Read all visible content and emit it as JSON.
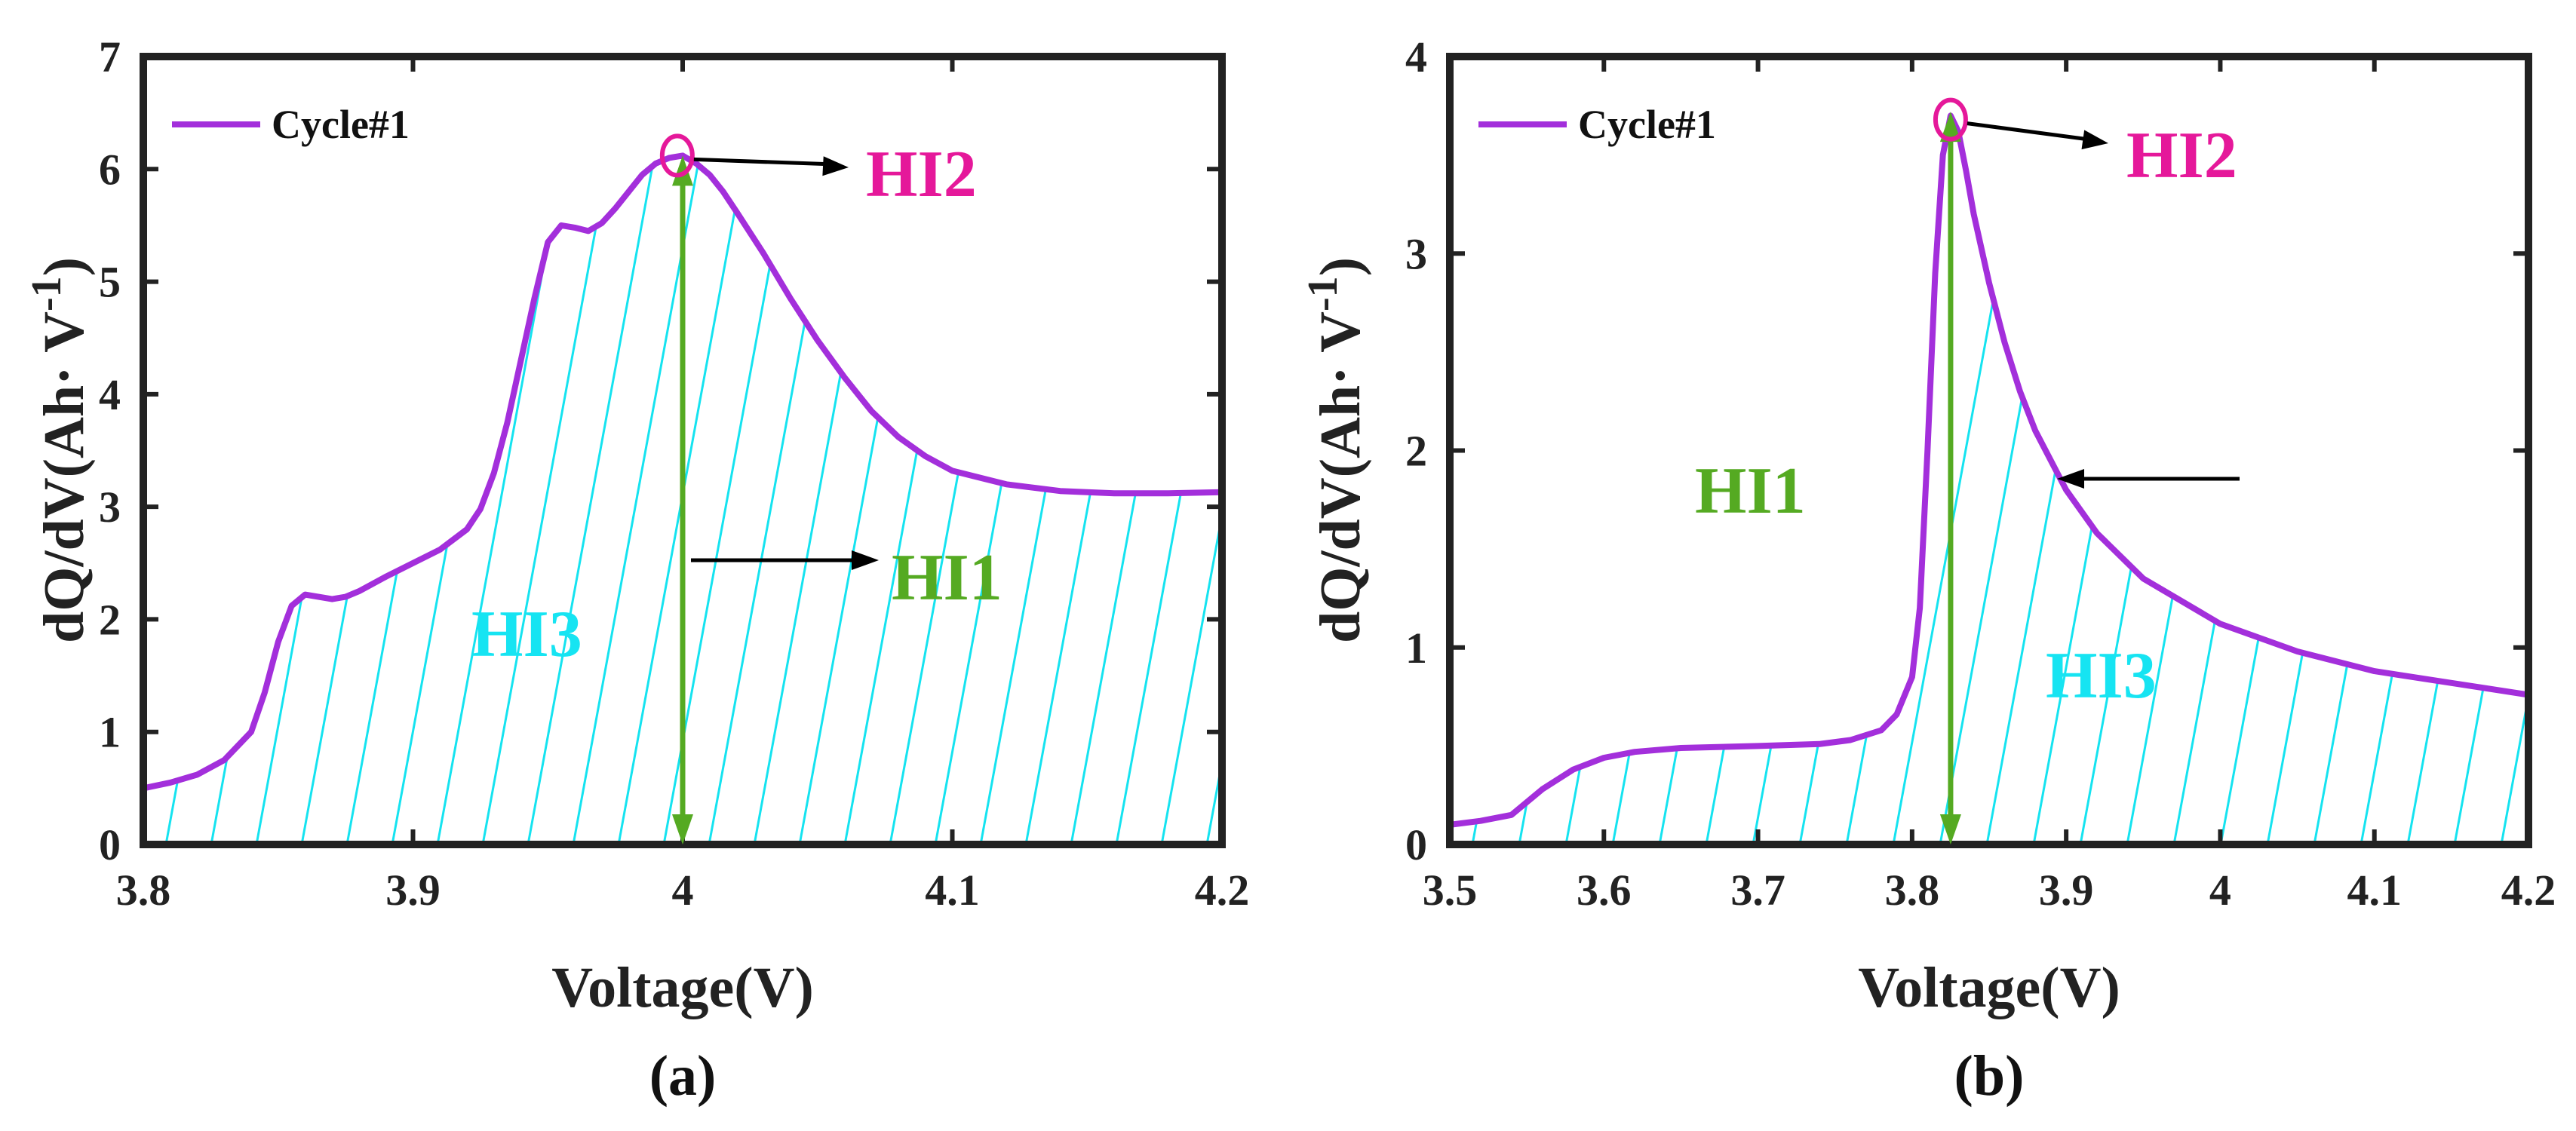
{
  "colors": {
    "curve": "#A32FDB",
    "hatch": "#15E3F0",
    "hi1": "#55AA22",
    "hi2": "#E5189A",
    "hi3": "#16E4F2",
    "axis": "#222222",
    "arrow": "#000000"
  },
  "chart_data": [
    {
      "type": "line",
      "caption": "(a)",
      "xlabel": "Voltage(V)",
      "ylabel": "dQ/dV(Ah· V",
      "ylabel_sup": "-1",
      "ylabel_close": ")",
      "xlim": [
        3.8,
        4.2
      ],
      "ylim": [
        0,
        7
      ],
      "xticks": [
        3.8,
        3.9,
        4.0,
        4.1,
        4.2
      ],
      "xtick_labels": [
        "3.8",
        "3.9",
        "4",
        "4.1",
        "4.2"
      ],
      "yticks": [
        0,
        1,
        2,
        3,
        4,
        5,
        6,
        7
      ],
      "ytick_labels": [
        "0",
        "1",
        "2",
        "3",
        "4",
        "5",
        "6",
        "7"
      ],
      "legend": "Cycle#1",
      "legend_position": "top-left",
      "series": [
        {
          "name": "Cycle#1",
          "x": [
            3.8,
            3.81,
            3.82,
            3.83,
            3.84,
            3.845,
            3.85,
            3.855,
            3.86,
            3.865,
            3.87,
            3.875,
            3.88,
            3.89,
            3.9,
            3.91,
            3.92,
            3.925,
            3.93,
            3.935,
            3.94,
            3.945,
            3.95,
            3.955,
            3.96,
            3.965,
            3.97,
            3.975,
            3.98,
            3.985,
            3.99,
            3.995,
            4.0,
            4.005,
            4.01,
            4.015,
            4.02,
            4.03,
            4.04,
            4.05,
            4.06,
            4.07,
            4.08,
            4.09,
            4.1,
            4.12,
            4.14,
            4.16,
            4.18,
            4.2
          ],
          "y": [
            0.5,
            0.55,
            0.62,
            0.75,
            1.0,
            1.35,
            1.8,
            2.12,
            2.22,
            2.2,
            2.18,
            2.2,
            2.25,
            2.38,
            2.5,
            2.62,
            2.8,
            2.98,
            3.3,
            3.75,
            4.3,
            4.85,
            5.35,
            5.5,
            5.48,
            5.45,
            5.52,
            5.65,
            5.8,
            5.95,
            6.05,
            6.1,
            6.12,
            6.05,
            5.95,
            5.8,
            5.62,
            5.25,
            4.85,
            4.48,
            4.15,
            3.85,
            3.62,
            3.45,
            3.32,
            3.2,
            3.14,
            3.12,
            3.12,
            3.13
          ]
        }
      ],
      "annotations": {
        "hi1": {
          "label": "HI1",
          "x": 4.0,
          "y_from": 0,
          "y_to": 6.12
        },
        "hi2": {
          "label": "HI2",
          "x": 3.998,
          "y": 6.12
        },
        "hi3": {
          "label": "HI3"
        }
      }
    },
    {
      "type": "line",
      "caption": "(b)",
      "xlabel": "Voltage(V)",
      "ylabel": "dQ/dV(Ah· V",
      "ylabel_sup": "-1",
      "ylabel_close": ")",
      "xlim": [
        3.5,
        4.2
      ],
      "ylim": [
        0,
        4
      ],
      "xticks": [
        3.5,
        3.6,
        3.7,
        3.8,
        3.9,
        4.0,
        4.1,
        4.2
      ],
      "xtick_labels": [
        "3.5",
        "3.6",
        "3.7",
        "3.8",
        "3.9",
        "4",
        "4.1",
        "4.2"
      ],
      "yticks": [
        0,
        1,
        2,
        3,
        4
      ],
      "ytick_labels": [
        "0",
        "1",
        "2",
        "3",
        "4"
      ],
      "legend": "Cycle#1",
      "legend_position": "top-left",
      "series": [
        {
          "name": "Cycle#1",
          "x": [
            3.5,
            3.52,
            3.54,
            3.56,
            3.58,
            3.6,
            3.62,
            3.65,
            3.7,
            3.74,
            3.76,
            3.78,
            3.79,
            3.8,
            3.805,
            3.81,
            3.815,
            3.82,
            3.825,
            3.83,
            3.835,
            3.84,
            3.85,
            3.86,
            3.87,
            3.88,
            3.9,
            3.92,
            3.95,
            4.0,
            4.05,
            4.1,
            4.15,
            4.2
          ],
          "y": [
            0.1,
            0.12,
            0.15,
            0.28,
            0.38,
            0.44,
            0.47,
            0.49,
            0.5,
            0.51,
            0.53,
            0.58,
            0.66,
            0.85,
            1.2,
            2.0,
            2.9,
            3.5,
            3.7,
            3.62,
            3.42,
            3.2,
            2.85,
            2.55,
            2.3,
            2.1,
            1.8,
            1.58,
            1.35,
            1.12,
            0.98,
            0.88,
            0.82,
            0.76
          ]
        }
      ],
      "annotations": {
        "hi1": {
          "label": "HI1",
          "x": 3.825,
          "y_from": 0,
          "y_to": 3.72
        },
        "hi2": {
          "label": "HI2",
          "x": 3.825,
          "y": 3.68
        },
        "hi3": {
          "label": "HI3"
        }
      }
    }
  ]
}
